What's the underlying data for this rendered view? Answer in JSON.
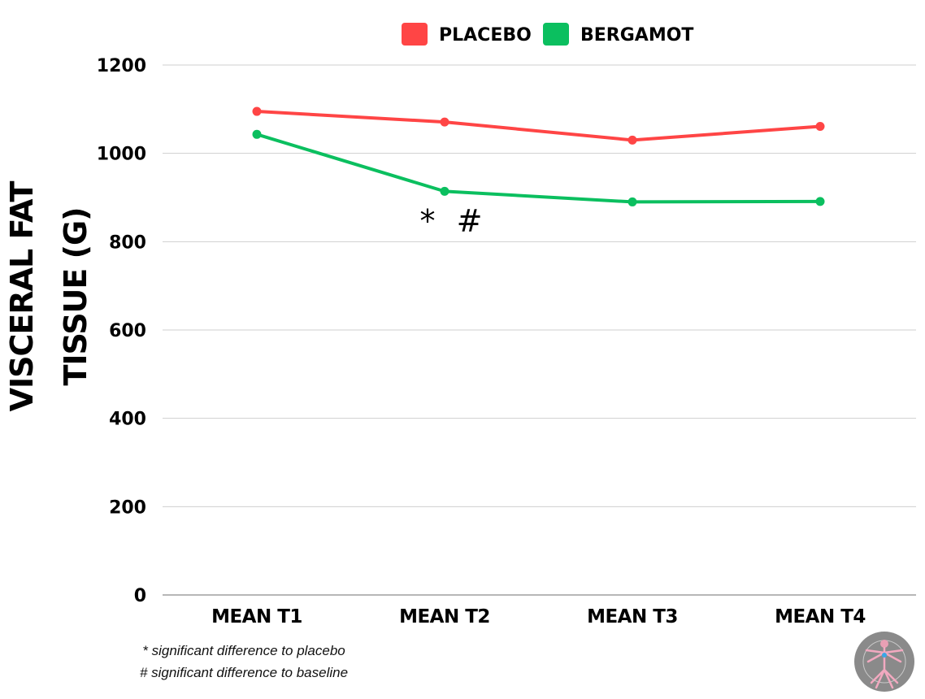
{
  "chart_data": {
    "type": "line",
    "ylabel_lines": [
      "VISCERAL FAT",
      "TISSUE (G)"
    ],
    "categories": [
      "MEAN T1",
      "MEAN T2",
      "MEAN T3",
      "MEAN T4"
    ],
    "ylim": [
      0,
      1200
    ],
    "yticks": [
      0,
      200,
      400,
      600,
      800,
      1000,
      1200
    ],
    "grid": true,
    "legend_position": "top-center",
    "series": [
      {
        "name": "PLACEBO",
        "color": "#ff4545",
        "values": [
          1095,
          1071,
          1030,
          1061
        ]
      },
      {
        "name": "BERGAMOT",
        "color": "#0bbf5f",
        "values": [
          1043,
          914,
          890,
          891
        ]
      }
    ],
    "annotations": [
      {
        "text": "* #",
        "category": "MEAN T2"
      }
    ],
    "footnotes": [
      "* significant difference to placebo",
      "# significant difference to baseline"
    ]
  }
}
